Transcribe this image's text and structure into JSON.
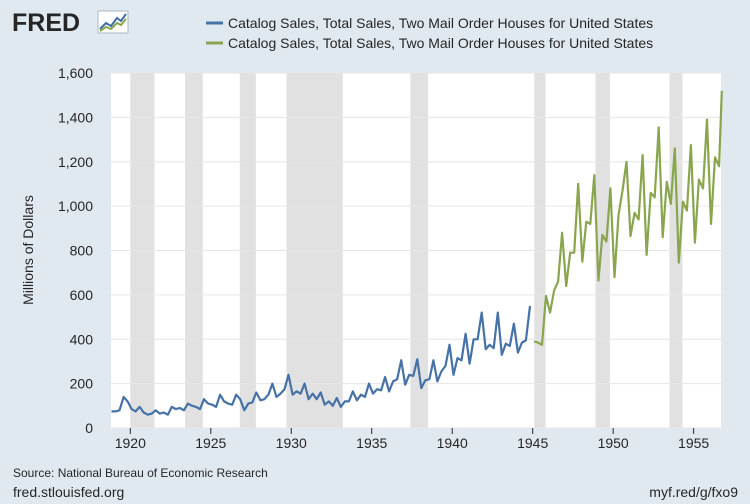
{
  "logo": {
    "text": "FRED",
    "icon": "fred-line-graph-icon"
  },
  "footer": {
    "source": "Source: National Bureau of Economic Research",
    "site": "fred.stlouisfed.org",
    "short_url": "myf.red/g/fxo9"
  },
  "colors": {
    "background": "#e1e9f0",
    "plot": "#ffffff",
    "recession": "#e1e1e1",
    "series1": "#4572a7",
    "series2": "#89a54e"
  },
  "chart_data": {
    "type": "line",
    "ylabel": "Millions of Dollars",
    "xlim": [
      1918.8,
      1956.7
    ],
    "ylim": [
      0,
      1600
    ],
    "x_ticks": [
      1920,
      1925,
      1930,
      1935,
      1940,
      1945,
      1950,
      1955
    ],
    "y_ticks": [
      0,
      200,
      400,
      600,
      800,
      1000,
      1200,
      1400,
      1600
    ],
    "y_tick_labels": [
      "0",
      "200",
      "400",
      "600",
      "800",
      "1,000",
      "1,200",
      "1,400",
      "1,600"
    ],
    "grid": "horizontal",
    "legend_position": "top",
    "recessions": [
      [
        1920.0,
        1921.5
      ],
      [
        1923.4,
        1924.5
      ],
      [
        1926.8,
        1927.8
      ],
      [
        1929.7,
        1933.2
      ],
      [
        1937.4,
        1938.5
      ],
      [
        1945.1,
        1945.8
      ],
      [
        1948.9,
        1949.8
      ],
      [
        1953.5,
        1954.3
      ]
    ],
    "series": [
      {
        "name": "Catalog Sales, Total Sales, Two Mail Order Houses for United States",
        "color": "#4572a7",
        "points": [
          [
            1918.83,
            75
          ],
          [
            1919.08,
            75
          ],
          [
            1919.33,
            80
          ],
          [
            1919.58,
            140
          ],
          [
            1919.83,
            120
          ],
          [
            1920.08,
            85
          ],
          [
            1920.33,
            75
          ],
          [
            1920.58,
            95
          ],
          [
            1920.83,
            70
          ],
          [
            1921.08,
            60
          ],
          [
            1921.33,
            65
          ],
          [
            1921.58,
            80
          ],
          [
            1921.83,
            65
          ],
          [
            1922.08,
            70
          ],
          [
            1922.33,
            60
          ],
          [
            1922.58,
            95
          ],
          [
            1922.83,
            85
          ],
          [
            1923.08,
            90
          ],
          [
            1923.33,
            80
          ],
          [
            1923.58,
            110
          ],
          [
            1923.83,
            100
          ],
          [
            1924.08,
            95
          ],
          [
            1924.33,
            85
          ],
          [
            1924.58,
            130
          ],
          [
            1924.83,
            110
          ],
          [
            1925.08,
            105
          ],
          [
            1925.33,
            95
          ],
          [
            1925.58,
            150
          ],
          [
            1925.83,
            120
          ],
          [
            1926.08,
            110
          ],
          [
            1926.33,
            105
          ],
          [
            1926.58,
            150
          ],
          [
            1926.83,
            130
          ],
          [
            1927.08,
            80
          ],
          [
            1927.33,
            110
          ],
          [
            1927.58,
            115
          ],
          [
            1927.83,
            160
          ],
          [
            1928.08,
            125
          ],
          [
            1928.33,
            130
          ],
          [
            1928.58,
            150
          ],
          [
            1928.83,
            200
          ],
          [
            1929.08,
            140
          ],
          [
            1929.33,
            155
          ],
          [
            1929.58,
            175
          ],
          [
            1929.83,
            240
          ],
          [
            1930.08,
            150
          ],
          [
            1930.33,
            165
          ],
          [
            1930.58,
            155
          ],
          [
            1930.83,
            200
          ],
          [
            1931.08,
            130
          ],
          [
            1931.33,
            155
          ],
          [
            1931.58,
            130
          ],
          [
            1931.83,
            160
          ],
          [
            1932.08,
            105
          ],
          [
            1932.33,
            120
          ],
          [
            1932.58,
            100
          ],
          [
            1932.83,
            135
          ],
          [
            1933.08,
            95
          ],
          [
            1933.33,
            120
          ],
          [
            1933.58,
            120
          ],
          [
            1933.83,
            165
          ],
          [
            1934.08,
            125
          ],
          [
            1934.33,
            150
          ],
          [
            1934.58,
            140
          ],
          [
            1934.83,
            200
          ],
          [
            1935.08,
            155
          ],
          [
            1935.33,
            175
          ],
          [
            1935.58,
            170
          ],
          [
            1935.83,
            230
          ],
          [
            1936.08,
            165
          ],
          [
            1936.33,
            210
          ],
          [
            1936.58,
            220
          ],
          [
            1936.83,
            305
          ],
          [
            1937.08,
            195
          ],
          [
            1937.33,
            240
          ],
          [
            1937.58,
            235
          ],
          [
            1937.83,
            310
          ],
          [
            1938.08,
            180
          ],
          [
            1938.33,
            215
          ],
          [
            1938.58,
            220
          ],
          [
            1938.83,
            305
          ],
          [
            1939.08,
            210
          ],
          [
            1939.33,
            255
          ],
          [
            1939.58,
            280
          ],
          [
            1939.83,
            375
          ],
          [
            1940.08,
            240
          ],
          [
            1940.33,
            315
          ],
          [
            1940.58,
            305
          ],
          [
            1940.83,
            425
          ],
          [
            1941.08,
            290
          ],
          [
            1941.33,
            400
          ],
          [
            1941.58,
            400
          ],
          [
            1941.83,
            520
          ],
          [
            1942.08,
            355
          ],
          [
            1942.33,
            375
          ],
          [
            1942.58,
            360
          ],
          [
            1942.83,
            520
          ],
          [
            1943.08,
            330
          ],
          [
            1943.33,
            380
          ],
          [
            1943.58,
            370
          ],
          [
            1943.83,
            470
          ],
          [
            1944.08,
            340
          ],
          [
            1944.33,
            385
          ],
          [
            1944.58,
            395
          ],
          [
            1944.83,
            550
          ]
        ]
      },
      {
        "name": "Catalog Sales, Total Sales, Two Mail Order Houses for United States",
        "color": "#89a54e",
        "points": [
          [
            1945.08,
            390
          ],
          [
            1945.33,
            385
          ],
          [
            1945.58,
            375
          ],
          [
            1945.83,
            595
          ],
          [
            1946.08,
            520
          ],
          [
            1946.33,
            620
          ],
          [
            1946.58,
            660
          ],
          [
            1946.83,
            880
          ],
          [
            1947.08,
            640
          ],
          [
            1947.33,
            790
          ],
          [
            1947.58,
            790
          ],
          [
            1947.83,
            1100
          ],
          [
            1948.08,
            750
          ],
          [
            1948.33,
            930
          ],
          [
            1948.58,
            920
          ],
          [
            1948.83,
            1140
          ],
          [
            1949.08,
            665
          ],
          [
            1949.33,
            870
          ],
          [
            1949.58,
            840
          ],
          [
            1949.83,
            1080
          ],
          [
            1950.08,
            680
          ],
          [
            1950.33,
            960
          ],
          [
            1950.58,
            1070
          ],
          [
            1950.83,
            1200
          ],
          [
            1951.08,
            865
          ],
          [
            1951.33,
            970
          ],
          [
            1951.58,
            940
          ],
          [
            1951.83,
            1230
          ],
          [
            1952.08,
            780
          ],
          [
            1952.33,
            1060
          ],
          [
            1952.58,
            1040
          ],
          [
            1952.83,
            1355
          ],
          [
            1953.08,
            860
          ],
          [
            1953.33,
            1110
          ],
          [
            1953.58,
            1010
          ],
          [
            1953.83,
            1260
          ],
          [
            1954.08,
            745
          ],
          [
            1954.33,
            1020
          ],
          [
            1954.58,
            980
          ],
          [
            1954.83,
            1275
          ],
          [
            1955.08,
            835
          ],
          [
            1955.33,
            1120
          ],
          [
            1955.58,
            1080
          ],
          [
            1955.83,
            1390
          ],
          [
            1956.08,
            920
          ],
          [
            1956.33,
            1220
          ],
          [
            1956.58,
            1180
          ],
          [
            1956.75,
            1520
          ]
        ]
      }
    ]
  }
}
